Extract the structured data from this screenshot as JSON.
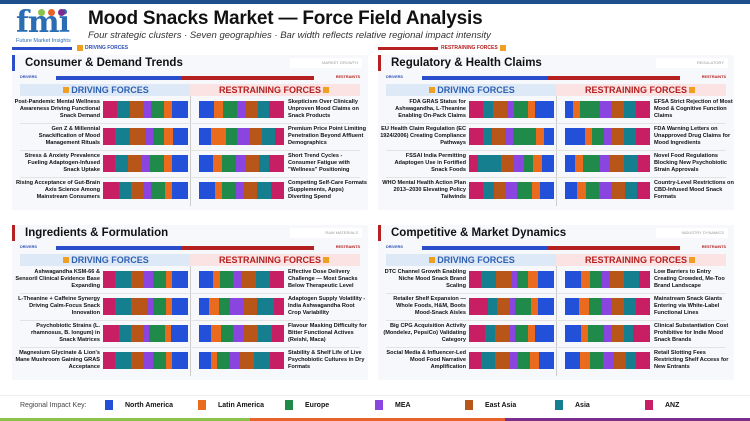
{
  "header": {
    "title": "Mood Snacks Market — Force Field Analysis",
    "subtitle": "Four strategic clusters · Seven geographies · Bar width reflects relative regional impact intensity",
    "logo_text": "fmi",
    "logo_sub": "Future Market Insights"
  },
  "colors": {
    "header_band": "#1f4e8c",
    "driver": "#2a4dcc",
    "restraint": "#b52020",
    "bottom_strip": [
      "#8bc34a",
      "#e8622c",
      "#7b2d8e"
    ]
  },
  "tags": {
    "left": "DRIVING FORCES",
    "right": "RESTRAINING FORCES"
  },
  "labels": {
    "drivers": "DRIVERS",
    "restraints": "RESTRAINTS",
    "driving": "DRIVING FORCES",
    "restraining": "RESTRAINING FORCES"
  },
  "regions": [
    {
      "name": "North America",
      "color": "#2350d8"
    },
    {
      "name": "Latin America",
      "color": "#ea6a1e"
    },
    {
      "name": "Europe",
      "color": "#1f8a4a"
    },
    {
      "name": "MEA",
      "color": "#8a44e0"
    },
    {
      "name": "East Asia",
      "color": "#b8561a"
    },
    {
      "name": "Asia",
      "color": "#167f8f"
    },
    {
      "name": "ANZ",
      "color": "#c81e63"
    }
  ],
  "key_label": "Regional Impact Key:",
  "panels": [
    {
      "title": "Consumer & Demand Trends",
      "tag": "MARKET GROWTH",
      "accent": "#2a4dcc",
      "drivers": [
        {
          "label": "Post-Pandemic Mental Wellness Awareness Driving Functional Snack Demand",
          "impact": [
            18,
            8,
            15,
            8,
            15,
            15,
            15
          ]
        },
        {
          "label": "Gen Z & Millennial Snackification of Mood Management Rituals",
          "impact": [
            17,
            9,
            13,
            9,
            16,
            17,
            13
          ]
        },
        {
          "label": "Stress & Anxiety Prevalence Fueling Adaptogen-Infused Snack Uptake",
          "impact": [
            18,
            9,
            16,
            9,
            16,
            14,
            14
          ]
        },
        {
          "label": "Rising Acceptance of Gut-Brain Axis Science Among Mainstream Consumers",
          "impact": [
            18,
            8,
            16,
            8,
            14,
            14,
            18
          ]
        }
      ],
      "restraints": [
        {
          "label": "Skepticism Over Clinically Unproven Mood Claims on Snack Products",
          "impact": [
            17,
            10,
            16,
            10,
            13,
            12,
            17
          ]
        },
        {
          "label": "Premium Price Point Limiting Penetration Beyond Affluent Demographics",
          "impact": [
            13,
            17,
            13,
            15,
            13,
            15,
            10
          ]
        },
        {
          "label": "Short Trend Cycles - Consumer Fatigue with \"Wellness\" Positioning",
          "impact": [
            16,
            11,
            16,
            11,
            15,
            12,
            17
          ]
        },
        {
          "label": "Competing Self-Care Formats (Supplements, Apps) Diverting Spend",
          "impact": [
            18,
            8,
            16,
            8,
            16,
            15,
            15
          ]
        }
      ]
    },
    {
      "title": "Regulatory & Health Claims",
      "tag": "REGULATORY",
      "accent": "#b52020",
      "drivers": [
        {
          "label": "FDA GRAS Status for Ashwagandha, L-Theanine Enabling On-Pack Claims",
          "impact": [
            22,
            9,
            16,
            9,
            16,
            12,
            17
          ]
        },
        {
          "label": "EU Health Claim Regulation (EC 1924/2006) Creating Compliance Pathways",
          "impact": [
            11,
            10,
            26,
            9,
            15,
            10,
            16
          ]
        },
        {
          "label": "FSSAI India Permitting Adaptogen Use in Fortified Snack Foods",
          "impact": [
            14,
            10,
            11,
            11,
            16,
            27,
            10
          ]
        },
        {
          "label": "WHO Mental Health Action Plan 2013–2030 Elevating Policy Tailwinds",
          "impact": [
            16,
            10,
            17,
            14,
            13,
            13,
            17
          ]
        }
      ],
      "restraints": [
        {
          "label": "EFSA Strict Rejection of Most Mood & Cognitive Function Claims",
          "impact": [
            9,
            9,
            23,
            14,
            14,
            14,
            17
          ]
        },
        {
          "label": "FDA Warning Letters on Unapproved Drug Claims for Mood Ingredients",
          "impact": [
            23,
            9,
            14,
            9,
            15,
            14,
            16
          ]
        },
        {
          "label": "Novel Food Regulations Blocking New Psychobiotic Strain Approvals",
          "impact": [
            12,
            9,
            20,
            12,
            17,
            16,
            14
          ]
        },
        {
          "label": "Country-Level Restrictions on CBD-Infused Mood Snack Formats",
          "impact": [
            14,
            11,
            15,
            15,
            16,
            14,
            15
          ]
        }
      ]
    },
    {
      "title": "Ingredients & Formulation",
      "tag": "RAW MATERIALS",
      "accent": "#b52020",
      "drivers": [
        {
          "label": "Ashwagandha KSM-66 & Sensoril Clinical Evidence Base Expanding",
          "impact": [
            18,
            7,
            15,
            10,
            15,
            18,
            14
          ]
        },
        {
          "label": "L-Theanine + Caffeine Synergy Driving Calm-Focus Snack Innovation",
          "impact": [
            18,
            7,
            15,
            7,
            18,
            18,
            14
          ]
        },
        {
          "label": "Psychobiotic Strains (L. rhamnosus, B. longum) in Snack Matrices",
          "impact": [
            19,
            7,
            18,
            7,
            14,
            14,
            18
          ]
        },
        {
          "label": "Magnesium Glycinate & Lion's Mane Mushroom Gaining GRAS Acceptance",
          "impact": [
            19,
            7,
            15,
            10,
            15,
            19,
            14
          ]
        }
      ],
      "restraints": [
        {
          "label": "Effective Dose Delivery Challenge — Most Snacks Below Therapeutic Level",
          "impact": [
            16,
            9,
            15,
            10,
            17,
            16,
            17
          ]
        },
        {
          "label": "Adaptogen Supply Volatility - India Ashwagandha Root Crop Variability",
          "impact": [
            12,
            12,
            12,
            16,
            16,
            20,
            12
          ]
        },
        {
          "label": "Flavour Masking Difficulty for Bitter Functional Actives (Reishi, Maca)",
          "impact": [
            14,
            12,
            14,
            12,
            18,
            16,
            14
          ]
        },
        {
          "label": "Stability & Shelf Life of Live Psychobiotic Cultures in Dry Formats",
          "impact": [
            14,
            7,
            15,
            11,
            18,
            18,
            17
          ]
        }
      ]
    },
    {
      "title": "Competitive & Market Dynamics",
      "tag": "INDUSTRY DYNAMICS",
      "accent": "#b52020",
      "drivers": [
        {
          "label": "DTC Channel Growth Enabling Niche Mood Snack Brand Scaling",
          "impact": [
            19,
            11,
            14,
            7,
            17,
            18,
            14
          ]
        },
        {
          "label": "Retailer Shelf Expansion — Whole Foods, H&M, Boots Mood-Snack Aisles",
          "impact": [
            19,
            8,
            19,
            7,
            14,
            11,
            22
          ]
        },
        {
          "label": "Big CPG Acquisition Activity (Mondelez, PepsiCo) Validating Category",
          "impact": [
            22,
            8,
            16,
            7,
            16,
            12,
            19
          ]
        },
        {
          "label": "Social Media & Influencer-Led Mood Food Narrative Amplification",
          "impact": [
            18,
            10,
            14,
            10,
            17,
            17,
            14
          ]
        }
      ],
      "restraints": [
        {
          "label": "Low Barriers to Entry Creating Crowded, Me-Too Brand Landscape",
          "impact": [
            19,
            10,
            14,
            10,
            17,
            17,
            13
          ]
        },
        {
          "label": "Mainstream Snack Giants Entering via White-Label Functional Lines",
          "impact": [
            17,
            11,
            15,
            11,
            15,
            15,
            16
          ]
        },
        {
          "label": "Clinical Substantiation Cost Prohibitive for Indie Mood Snack Brands",
          "impact": [
            19,
            8,
            19,
            8,
            15,
            11,
            20
          ]
        },
        {
          "label": "Retail Slotting Fees Restricting Shelf Access for New Entrants",
          "impact": [
            18,
            12,
            15,
            12,
            15,
            12,
            16
          ]
        }
      ]
    }
  ]
}
